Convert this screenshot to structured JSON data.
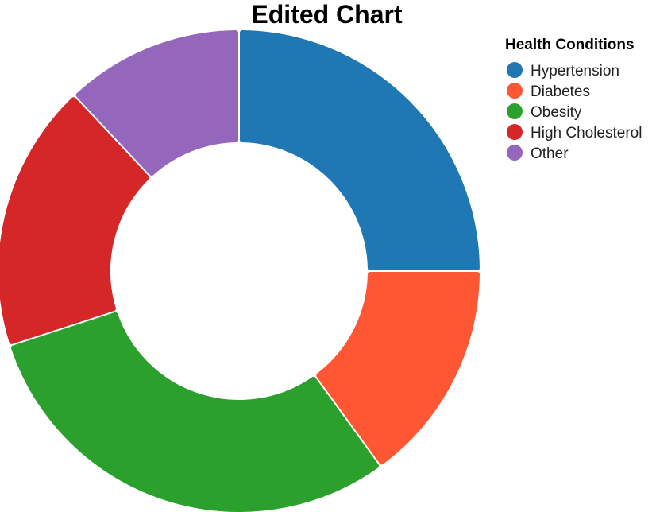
{
  "chart_data": {
    "type": "pie",
    "title": "Edited Chart",
    "legend_title": "Health Conditions",
    "legend_position": "top-right",
    "hole": 0.55,
    "categories": [
      "Hypertension",
      "Diabetes",
      "Obesity",
      "High Cholesterol",
      "Other"
    ],
    "values": [
      25,
      15,
      30,
      18,
      12
    ],
    "colors": [
      "#1f77b4",
      "#ff5733",
      "#2ca02c",
      "#d62728",
      "#9467bd"
    ]
  }
}
